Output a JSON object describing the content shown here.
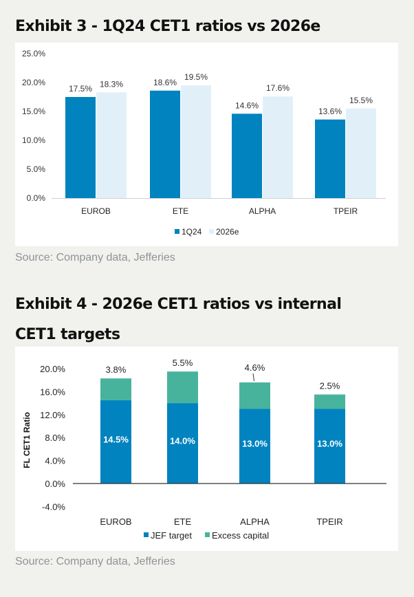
{
  "exhibit3": {
    "title": "Exhibit 3 - 1Q24 CET1 ratios vs 2026e",
    "source": "Source: Company data, Jefferies"
  },
  "exhibit4": {
    "title": "Exhibit 4 - 2026e CET1 ratios vs internal CET1 targets",
    "source": "Source: Company data, Jefferies"
  },
  "colors": {
    "dark_blue": "#0083bf",
    "light_blue": "#e1f0f8",
    "teal": "#48b39d",
    "background": "#f1f1ed",
    "source_text": "#8e9497"
  },
  "chart_data": [
    {
      "type": "bar",
      "title": "Exhibit 3 - 1Q24 CET1 ratios vs 2026e",
      "categories": [
        "EUROB",
        "ETE",
        "ALPHA",
        "TPEIR"
      ],
      "series": [
        {
          "name": "1Q24",
          "values": [
            17.5,
            18.6,
            14.6,
            13.6
          ],
          "labels": [
            "17.5%",
            "18.6%",
            "14.6%",
            "13.6%"
          ],
          "color": "#0083bf"
        },
        {
          "name": "2026e",
          "values": [
            18.3,
            19.5,
            17.6,
            15.5
          ],
          "labels": [
            "18.3%",
            "19.5%",
            "17.6%",
            "15.5%"
          ],
          "color": "#e1f0f8"
        }
      ],
      "yticks": [
        "0.0%",
        "5.0%",
        "10.0%",
        "15.0%",
        "20.0%",
        "25.0%"
      ],
      "ylim": [
        0,
        25
      ],
      "xlabel": "",
      "ylabel": "",
      "grid": false,
      "legend": "bottom-center"
    },
    {
      "type": "bar",
      "stacked": true,
      "title": "Exhibit 4 - 2026e CET1 ratios vs internal CET1 targets",
      "categories": [
        "EUROB",
        "ETE",
        "ALPHA",
        "TPEIR"
      ],
      "series": [
        {
          "name": "JEF target",
          "values": [
            14.5,
            14.0,
            13.0,
            13.0
          ],
          "labels": [
            "14.5%",
            "14.0%",
            "13.0%",
            "13.0%"
          ],
          "color": "#0083bf"
        },
        {
          "name": "Excess capital",
          "values": [
            3.8,
            5.5,
            4.6,
            2.5
          ],
          "labels": [
            "3.8%",
            "5.5%",
            "4.6%",
            "2.5%"
          ],
          "color": "#48b39d"
        }
      ],
      "yticks": [
        "-4.0%",
        "0.0%",
        "4.0%",
        "8.0%",
        "12.0%",
        "16.0%",
        "20.0%"
      ],
      "ylim": [
        -4,
        20
      ],
      "xlabel": "",
      "ylabel": "FL CET1 Ratio",
      "grid": false,
      "legend": "bottom-center"
    }
  ]
}
